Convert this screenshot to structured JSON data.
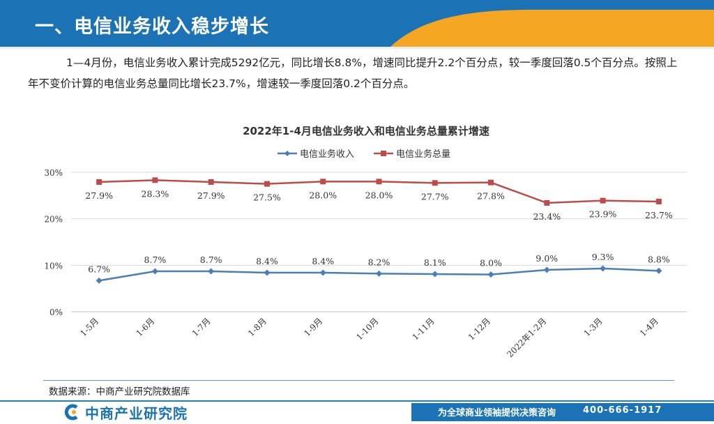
{
  "header": {
    "title": "一、电信业务收入稳步增长"
  },
  "paragraph": "1—4月份，电信业务收入累计完成5292亿元，同比增长8.8%，增速同比提升2.2个百分点，较一季度回落0.5个百分点。按照上年不变价计算的电信业务总量同比增长23.7%，增速较一季度回落0.2个百分点。",
  "chart_data": {
    "type": "line",
    "title": "2022年1-4月电信业务收入和电信业务总量累计增速",
    "categories": [
      "1-5月",
      "1-6月",
      "1-7月",
      "1-8月",
      "1-9月",
      "1-10月",
      "1-11月",
      "1-12月",
      "2022年1-2月",
      "1-3月",
      "1-4月"
    ],
    "yticks": [
      "0%",
      "10%",
      "20%",
      "30%"
    ],
    "ylim": [
      0,
      30
    ],
    "series": [
      {
        "name": "电信业务收入",
        "color": "#4a7ebb",
        "marker": "diamond",
        "values": [
          6.7,
          8.7,
          8.7,
          8.4,
          8.4,
          8.2,
          8.1,
          8.0,
          9.0,
          9.3,
          8.8
        ],
        "labels": [
          "6.7%",
          "8.7%",
          "8.7%",
          "8.4%",
          "8.4%",
          "8.2%",
          "8.1%",
          "8.0%",
          "9.0%",
          "9.3%",
          "8.8%"
        ]
      },
      {
        "name": "电信业务总量",
        "color": "#be4b48",
        "marker": "square",
        "values": [
          27.9,
          28.3,
          27.9,
          27.5,
          28.0,
          28.0,
          27.7,
          27.8,
          23.4,
          23.9,
          23.7
        ],
        "labels": [
          "27.9%",
          "28.3%",
          "27.9%",
          "27.5%",
          "28.0%",
          "28.0%",
          "27.7%",
          "27.8%",
          "23.4%",
          "23.9%",
          "23.7%"
        ]
      }
    ]
  },
  "source": "数据来源：中商产业研究院数据库",
  "footer": {
    "logo_text": "中商产业研究院",
    "tagline": "为全球商业领袖提供决策咨询",
    "phone": "400-666-1917"
  },
  "colors": {
    "brand_blue": "#1b73b5",
    "accent_orange": "#f5a623"
  }
}
